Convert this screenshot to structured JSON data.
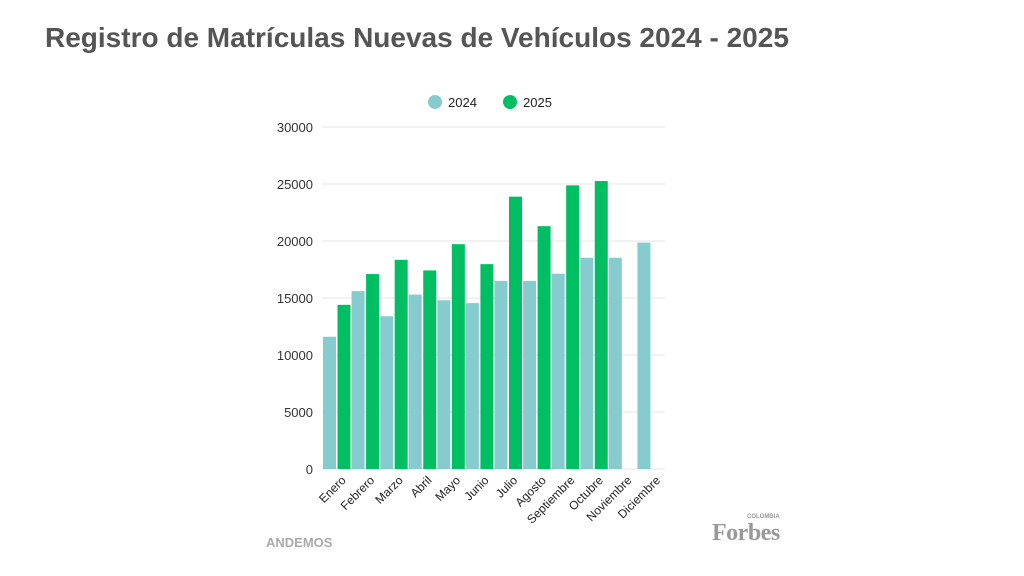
{
  "title": "Registro de Matrículas Nuevas de Vehículos 2024 - 2025",
  "source": "ANDEMOS",
  "logo": {
    "brand": "Forbes",
    "sub": "COLOMBIA"
  },
  "chart_data": {
    "type": "bar",
    "title": "Registro de Matrículas Nuevas de Vehículos 2024 - 2025",
    "xlabel": "",
    "ylabel": "",
    "ylim": [
      0,
      30000
    ],
    "yticks": [
      "0",
      "5000",
      "10000",
      "15000",
      "20000",
      "25000",
      "30000"
    ],
    "grid": true,
    "legend": "top",
    "categories": [
      "Enero",
      "Febrero",
      "Marzo",
      "Abril",
      "Mayo",
      "Junio",
      "Julio",
      "Agosto",
      "Septiembre",
      "Octubre",
      "Noviembre",
      "Diciembre"
    ],
    "series": [
      {
        "name": "2024",
        "color": "#86cccf",
        "values": [
          11600,
          15600,
          13400,
          15300,
          14800,
          14550,
          16500,
          16500,
          17130,
          18530,
          18530,
          19860
        ]
      },
      {
        "name": "2025",
        "color": "#00bf63",
        "values": [
          14400,
          17100,
          18350,
          17420,
          19720,
          17970,
          23890,
          21300,
          24880,
          25260,
          null,
          null
        ]
      }
    ]
  }
}
